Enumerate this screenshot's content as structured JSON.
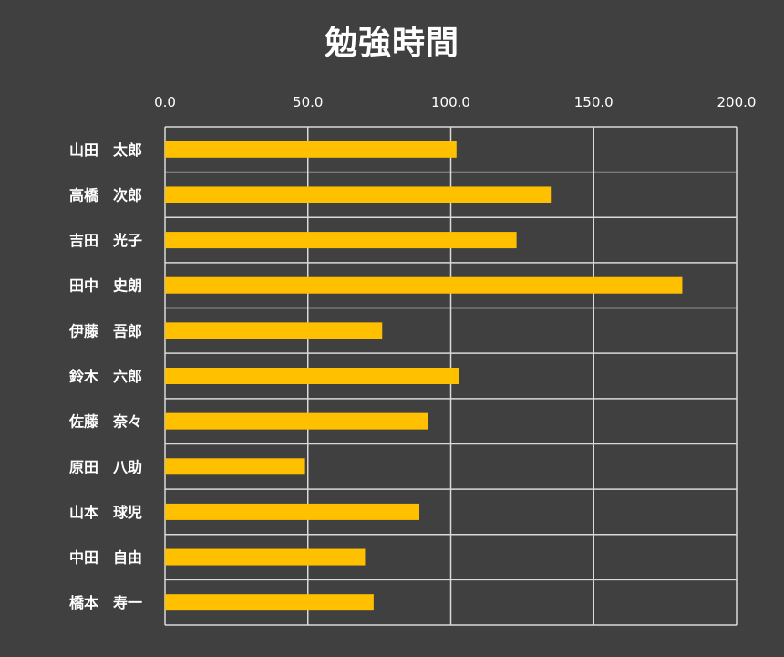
{
  "chart_data": {
    "type": "bar",
    "orientation": "horizontal",
    "title": "勉強時間",
    "xlabel": "",
    "ylabel": "",
    "xlim": [
      0,
      200
    ],
    "x_ticks": [
      "0.0",
      "50.0",
      "100.0",
      "150.0",
      "200.0"
    ],
    "x_axis_position": "top",
    "grid": true,
    "legend": "none",
    "categories": [
      "山田　太郎",
      "高橋　次郎",
      "吉田　光子",
      "田中　史朗",
      "伊藤　吾郎",
      "鈴木　六郎",
      "佐藤　奈々",
      "原田　八助",
      "山本　球児",
      "中田　自由",
      "橋本　寿一"
    ],
    "values": [
      102,
      135,
      123,
      181,
      76,
      103,
      92,
      49,
      89,
      70,
      73
    ],
    "colors": {
      "background": "#404040",
      "bar": "#FFC000",
      "grid": "#D9D9D9",
      "text": "#FFFFFF"
    }
  }
}
